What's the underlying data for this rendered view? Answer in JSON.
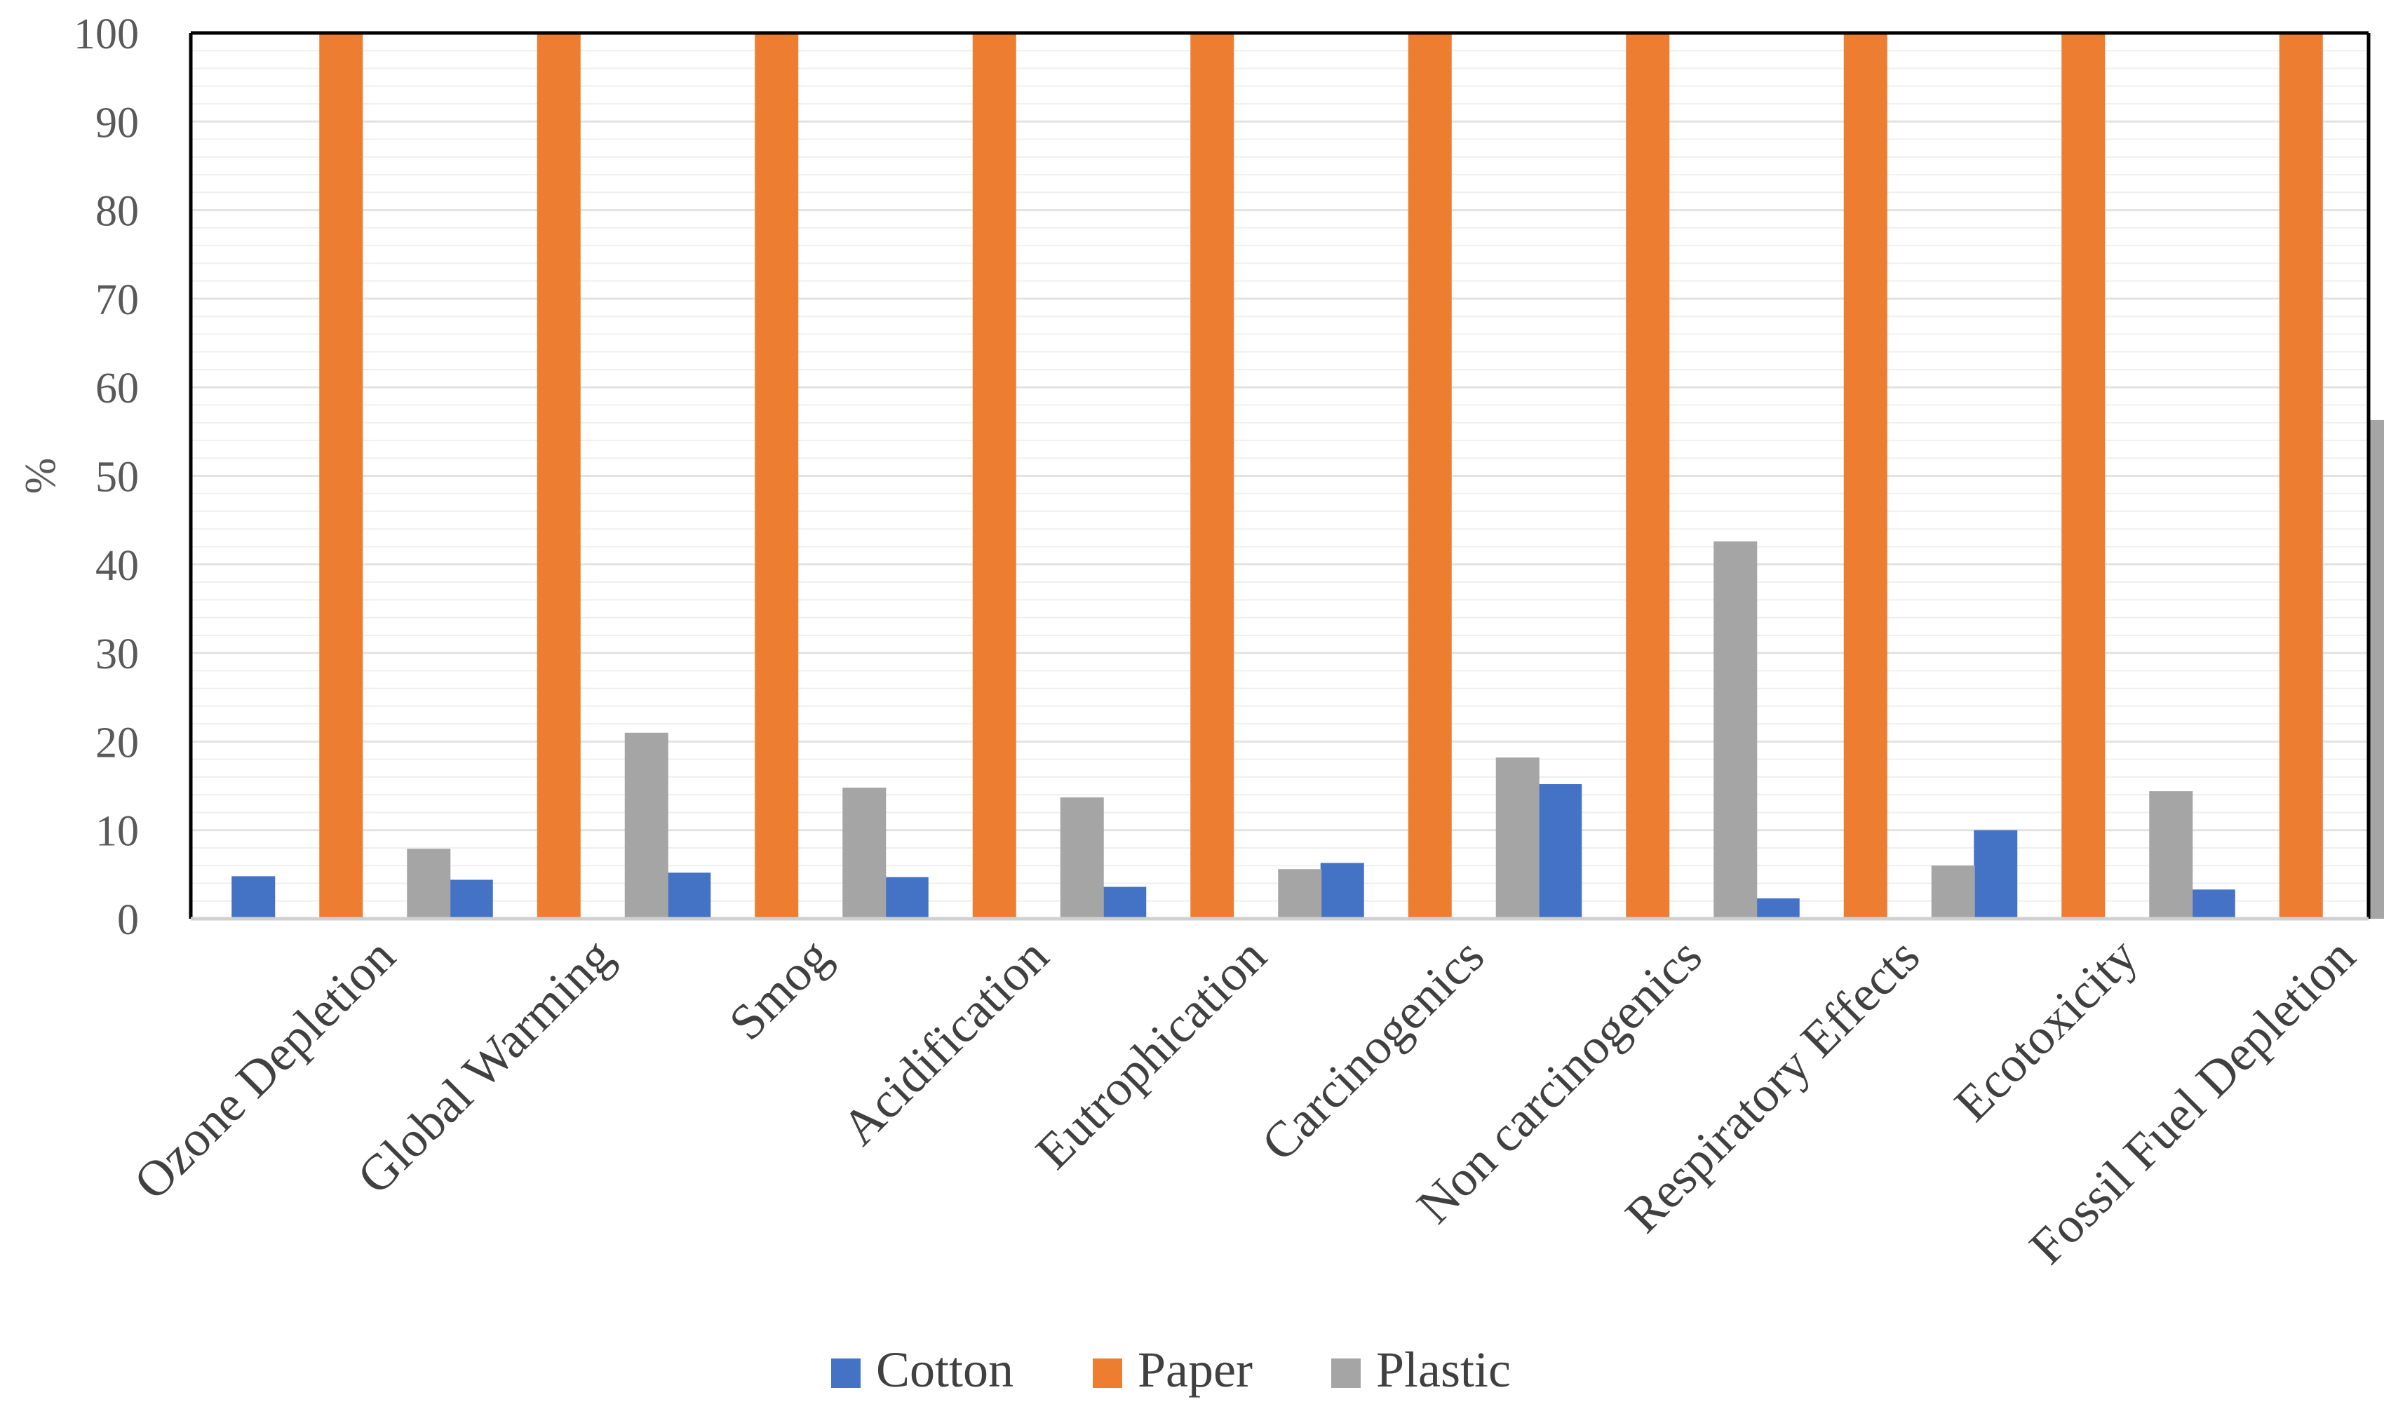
{
  "chart_data": {
    "type": "bar",
    "categories": [
      "Ozone Depletion",
      "Global Warming",
      "Smog",
      "Acidification",
      "Eutrophication",
      "Carcinogenics",
      "Non carcinogenics",
      "Respiratory Effects",
      "Ecotoxicity",
      "Fossil Fuel Depletion"
    ],
    "series": [
      {
        "name": "Cotton",
        "color": "#4472C4",
        "values": [
          4.8,
          4.4,
          5.2,
          4.7,
          3.6,
          6.3,
          15.2,
          2.3,
          10.0,
          3.3
        ]
      },
      {
        "name": "Paper",
        "color": "#ED7D31",
        "values": [
          100,
          100,
          100,
          100,
          100,
          100,
          100,
          100,
          100,
          100
        ]
      },
      {
        "name": "Plastic",
        "color": "#A5A5A5",
        "values": [
          7.9,
          21.0,
          14.8,
          13.7,
          5.6,
          18.2,
          42.6,
          6.0,
          14.4,
          56.3
        ]
      }
    ],
    "title": "",
    "xlabel": "",
    "ylabel": "%",
    "ylim": [
      0,
      100
    ],
    "yticks": [
      "0",
      "10",
      "20",
      "30",
      "40",
      "50",
      "60",
      "70",
      "80",
      "90",
      "100"
    ],
    "grid": true,
    "legend_position": "bottom"
  }
}
